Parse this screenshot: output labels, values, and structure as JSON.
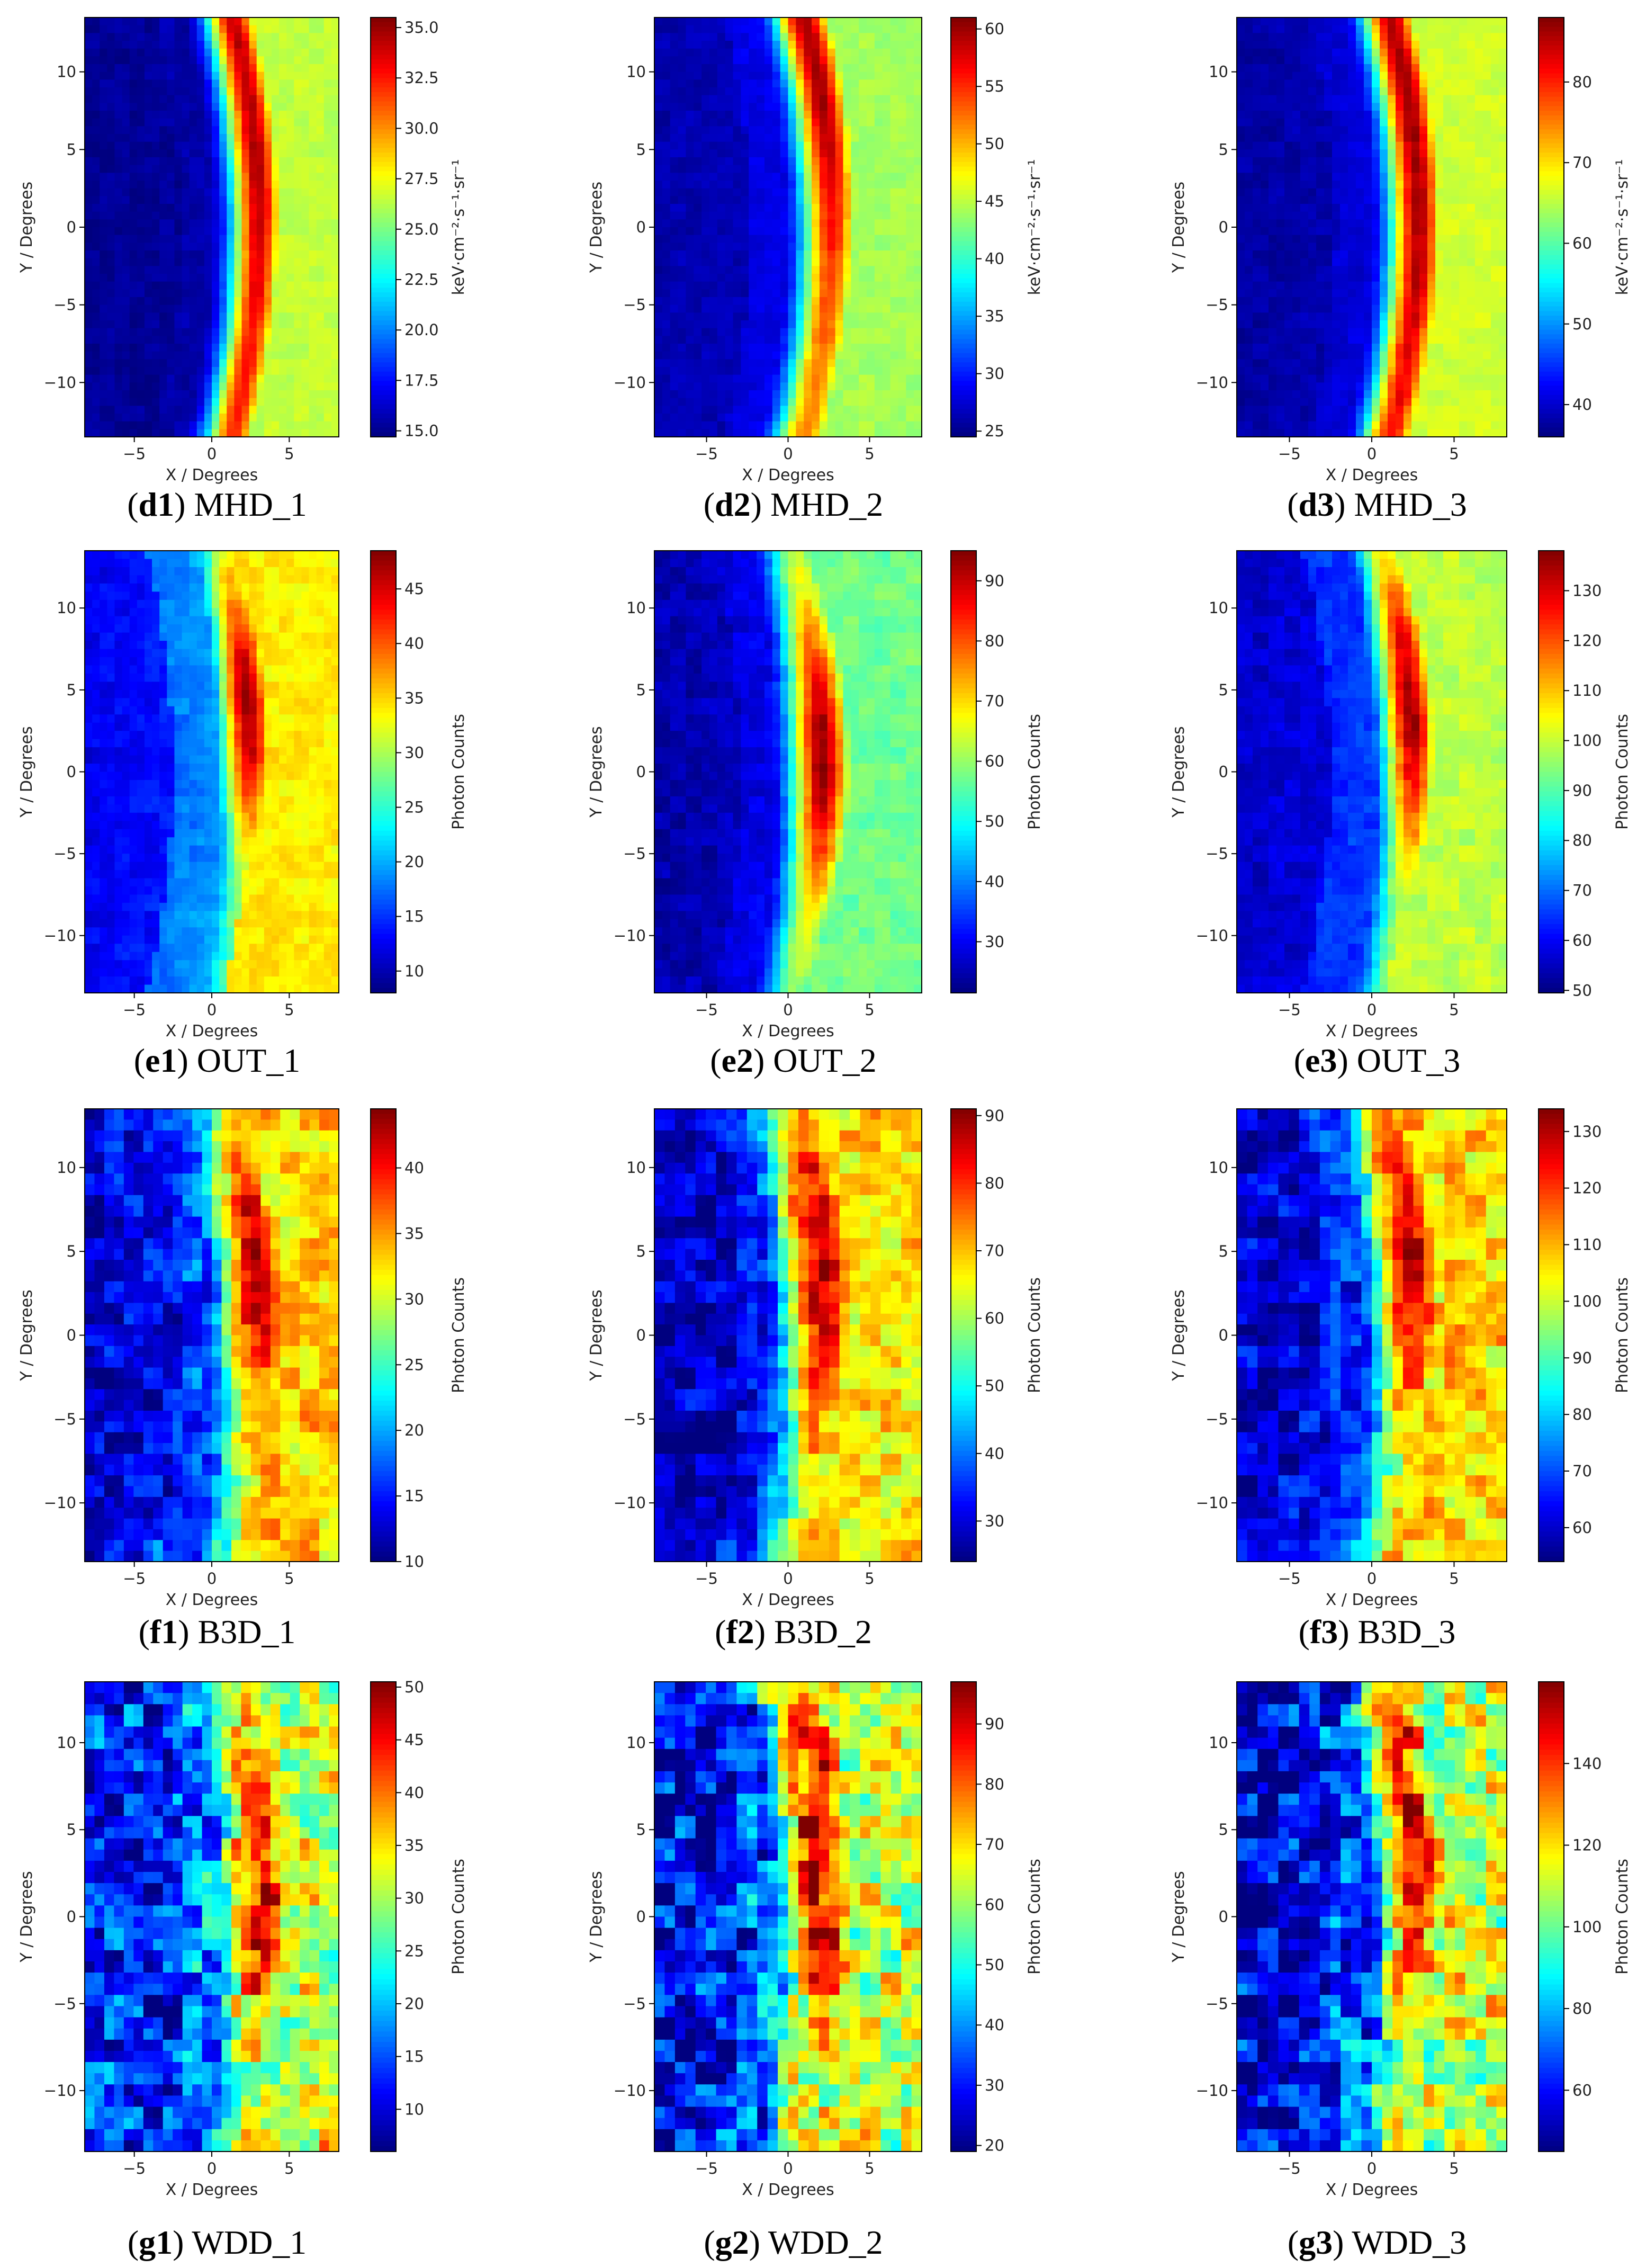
{
  "figure": {
    "colormap": [
      "#00007f",
      "#0000ff",
      "#007fff",
      "#00ffff",
      "#7fff7f",
      "#ffff00",
      "#ff7f00",
      "#ff0000",
      "#7f0000"
    ],
    "panels": [
      {
        "id": "d1",
        "name": "MHD_1",
        "colorbar_label": "keV·cm⁻²·s⁻¹·sr⁻¹",
        "chart_data": {
          "type": "heatmap",
          "xlabel": "X / Degrees",
          "ylabel": "Y / Degrees",
          "xlim": [
            -8.2,
            8.2
          ],
          "ylim": [
            -13.5,
            13.5
          ],
          "xticks": [
            -5,
            0,
            5
          ],
          "yticks": [
            -10,
            -5,
            0,
            5,
            10
          ],
          "clim": [
            14.7,
            35.5
          ],
          "cticks": [
            "15.0",
            "17.5",
            "20.0",
            "22.5",
            "25.0",
            "27.5",
            "30.0",
            "32.5",
            "35.0"
          ],
          "pattern": "crescent",
          "ridge_x": [
            1.5,
            4.6
          ],
          "ridge_width": 1.8,
          "ridge_y_center": 7,
          "ridge_y_spread": 18,
          "ridge_peak": 0.95,
          "ridge_min": 0.78,
          "bg_left": 0.05,
          "bg_right": 0.55,
          "noise": 0.02
        }
      },
      {
        "id": "d2",
        "name": "MHD_2",
        "colorbar_label": "keV·cm⁻²·s⁻¹·sr⁻¹",
        "chart_data": {
          "type": "heatmap",
          "xlabel": "X / Degrees",
          "ylabel": "Y / Degrees",
          "xlim": [
            -8.2,
            8.2
          ],
          "ylim": [
            -13.5,
            13.5
          ],
          "xticks": [
            -5,
            0,
            5
          ],
          "yticks": [
            -10,
            -5,
            0,
            5,
            10
          ],
          "clim": [
            24.5,
            61
          ],
          "cticks": [
            "25",
            "30",
            "35",
            "40",
            "45",
            "50",
            "55",
            "60"
          ],
          "pattern": "crescent",
          "ridge_x": [
            1.0,
            4.4
          ],
          "ridge_width": 1.9,
          "ridge_y_center": 12,
          "ridge_y_spread": 16,
          "ridge_peak": 0.97,
          "ridge_min": 0.72,
          "bg_left": 0.12,
          "bg_right": 0.5,
          "noise": 0.02
        }
      },
      {
        "id": "d3",
        "name": "MHD_3",
        "colorbar_label": "keV·cm⁻²·s⁻¹·sr⁻¹",
        "chart_data": {
          "type": "heatmap",
          "xlabel": "X / Degrees",
          "ylabel": "Y / Degrees",
          "xlim": [
            -8.2,
            8.2
          ],
          "ylim": [
            -13.5,
            13.5
          ],
          "xticks": [
            -5,
            0,
            5
          ],
          "yticks": [
            -10,
            -5,
            0,
            5,
            10
          ],
          "clim": [
            36,
            88
          ],
          "cticks": [
            "40",
            "50",
            "60",
            "70",
            "80"
          ],
          "pattern": "crescent",
          "ridge_x": [
            1.2,
            4.5
          ],
          "ridge_width": 1.8,
          "ridge_y_center": 6,
          "ridge_y_spread": 20,
          "ridge_peak": 0.97,
          "ridge_min": 0.8,
          "bg_left": 0.1,
          "bg_right": 0.55,
          "noise": 0.02
        }
      },
      {
        "id": "e1",
        "name": "OUT_1",
        "colorbar_label": "Photon Counts",
        "chart_data": {
          "type": "heatmap",
          "xlabel": "X / Degrees",
          "ylabel": "Y / Degrees",
          "xlim": [
            -8.2,
            8.2
          ],
          "ylim": [
            -13.5,
            13.5
          ],
          "xticks": [
            -5,
            0,
            5
          ],
          "yticks": [
            -10,
            -5,
            0,
            5,
            10
          ],
          "clim": [
            8,
            48.5
          ],
          "cticks": [
            "10",
            "15",
            "20",
            "25",
            "30",
            "35",
            "40",
            "45"
          ],
          "pattern": "crescent",
          "ridge_x": [
            1.0,
            4.0
          ],
          "ridge_width": 1.9,
          "ridge_y_center": 4,
          "ridge_y_spread": 9,
          "ridge_peak": 0.97,
          "ridge_min": 0.42,
          "bg_left": 0.3,
          "bg_right": 0.55,
          "noise": 0.03
        }
      },
      {
        "id": "e2",
        "name": "OUT_2",
        "colorbar_label": "Photon Counts",
        "chart_data": {
          "type": "heatmap",
          "xlabel": "X / Degrees",
          "ylabel": "Y / Degrees",
          "xlim": [
            -8.2,
            8.2
          ],
          "ylim": [
            -13.5,
            13.5
          ],
          "xticks": [
            -5,
            0,
            5
          ],
          "yticks": [
            -10,
            -5,
            0,
            5,
            10
          ],
          "clim": [
            21.5,
            95
          ],
          "cticks": [
            "30",
            "40",
            "50",
            "60",
            "70",
            "80",
            "90"
          ],
          "pattern": "crescent",
          "ridge_x": [
            0.8,
            3.5
          ],
          "ridge_width": 2.0,
          "ridge_y_center": 1,
          "ridge_y_spread": 9,
          "ridge_peak": 0.97,
          "ridge_min": 0.5,
          "bg_left": 0.12,
          "bg_right": 0.45,
          "noise": 0.03
        }
      },
      {
        "id": "e3",
        "name": "OUT_3",
        "colorbar_label": "Photon Counts",
        "chart_data": {
          "type": "heatmap",
          "xlabel": "X / Degrees",
          "ylabel": "Y / Degrees",
          "xlim": [
            -8.2,
            8.2
          ],
          "ylim": [
            -13.5,
            13.5
          ],
          "xticks": [
            -5,
            0,
            5
          ],
          "yticks": [
            -10,
            -5,
            0,
            5,
            10
          ],
          "clim": [
            49.5,
            138
          ],
          "cticks": [
            "50",
            "60",
            "70",
            "80",
            "90",
            "100",
            "110",
            "120",
            "130"
          ],
          "pattern": "crescent",
          "ridge_x": [
            1.2,
            3.8
          ],
          "ridge_width": 1.8,
          "ridge_y_center": 4,
          "ridge_y_spread": 10,
          "ridge_peak": 0.97,
          "ridge_min": 0.45,
          "bg_left": 0.2,
          "bg_right": 0.5,
          "noise": 0.03
        }
      },
      {
        "id": "f1",
        "name": "B3D_1",
        "colorbar_label": "Photon Counts",
        "chart_data": {
          "type": "heatmap",
          "xlabel": "X / Degrees",
          "ylabel": "Y / Degrees",
          "xlim": [
            -8.2,
            8.2
          ],
          "ylim": [
            -13.5,
            13.5
          ],
          "xticks": [
            -5,
            0,
            5
          ],
          "yticks": [
            -10,
            -5,
            0,
            5,
            10
          ],
          "clim": [
            10,
            44.5
          ],
          "cticks": [
            "10",
            "15",
            "20",
            "25",
            "30",
            "35",
            "40"
          ],
          "pattern": "blocky",
          "ridge_x": [
            1.5,
            4.5
          ],
          "ridge_width": 2.5,
          "ridge_y_center": 4,
          "ridge_y_spread": 10,
          "ridge_peak": 0.95,
          "ridge_min": 0.45,
          "bg_left": 0.22,
          "bg_right": 0.6,
          "noise": 0.09
        }
      },
      {
        "id": "f2",
        "name": "B3D_2",
        "colorbar_label": "Photon Counts",
        "chart_data": {
          "type": "heatmap",
          "xlabel": "X / Degrees",
          "ylabel": "Y / Degrees",
          "xlim": [
            -8.2,
            8.2
          ],
          "ylim": [
            -13.5,
            13.5
          ],
          "xticks": [
            -5,
            0,
            5
          ],
          "yticks": [
            -10,
            -5,
            0,
            5,
            10
          ],
          "clim": [
            24,
            91
          ],
          "cticks": [
            "30",
            "40",
            "50",
            "60",
            "70",
            "80",
            "90"
          ],
          "pattern": "blocky",
          "ridge_x": [
            1.0,
            3.5
          ],
          "ridge_width": 2.6,
          "ridge_y_center": 4,
          "ridge_y_spread": 12,
          "ridge_peak": 0.95,
          "ridge_min": 0.5,
          "bg_left": 0.15,
          "bg_right": 0.6,
          "noise": 0.09
        }
      },
      {
        "id": "f3",
        "name": "B3D_3",
        "colorbar_label": "Photon Counts",
        "chart_data": {
          "type": "heatmap",
          "xlabel": "X / Degrees",
          "ylabel": "Y / Degrees",
          "xlim": [
            -8.2,
            8.2
          ],
          "ylim": [
            -13.5,
            13.5
          ],
          "xticks": [
            -5,
            0,
            5
          ],
          "yticks": [
            -10,
            -5,
            0,
            5,
            10
          ],
          "clim": [
            54,
            134
          ],
          "cticks": [
            "60",
            "70",
            "80",
            "90",
            "100",
            "110",
            "120",
            "130"
          ],
          "pattern": "blocky",
          "ridge_x": [
            1.3,
            3.8
          ],
          "ridge_width": 2.4,
          "ridge_y_center": 5,
          "ridge_y_spread": 11,
          "ridge_peak": 0.96,
          "ridge_min": 0.48,
          "bg_left": 0.2,
          "bg_right": 0.6,
          "noise": 0.09
        }
      },
      {
        "id": "g1",
        "name": "WDD_1",
        "colorbar_label": "Photon Counts",
        "chart_data": {
          "type": "heatmap",
          "xlabel": "X / Degrees",
          "ylabel": "Y / Degrees",
          "xlim": [
            -8.2,
            8.2
          ],
          "ylim": [
            -13.5,
            13.5
          ],
          "xticks": [
            -5,
            0,
            5
          ],
          "yticks": [
            -10,
            -5,
            0,
            5,
            10
          ],
          "clim": [
            6,
            50.5
          ],
          "cticks": [
            "10",
            "15",
            "20",
            "25",
            "30",
            "35",
            "40",
            "45",
            "50"
          ],
          "pattern": "noisy",
          "ridge_x": [
            1.8,
            4.6
          ],
          "ridge_width": 2.4,
          "ridge_y_center": 3,
          "ridge_y_spread": 11,
          "ridge_peak": 0.92,
          "ridge_min": 0.45,
          "bg_left": 0.3,
          "bg_right": 0.5,
          "noise": 0.16
        }
      },
      {
        "id": "g2",
        "name": "WDD_2",
        "colorbar_label": "Photon Counts",
        "chart_data": {
          "type": "heatmap",
          "xlabel": "X / Degrees",
          "ylabel": "Y / Degrees",
          "xlim": [
            -8.2,
            8.2
          ],
          "ylim": [
            -13.5,
            13.5
          ],
          "xticks": [
            -5,
            0,
            5
          ],
          "yticks": [
            -10,
            -5,
            0,
            5,
            10
          ],
          "clim": [
            19,
            97
          ],
          "cticks": [
            "20",
            "30",
            "40",
            "50",
            "60",
            "70",
            "80",
            "90"
          ],
          "pattern": "noisy",
          "ridge_x": [
            1.0,
            3.5
          ],
          "ridge_width": 2.6,
          "ridge_y_center": 4,
          "ridge_y_spread": 13,
          "ridge_peak": 0.93,
          "ridge_min": 0.5,
          "bg_left": 0.22,
          "bg_right": 0.5,
          "noise": 0.16
        }
      },
      {
        "id": "g3",
        "name": "WDD_3",
        "colorbar_label": "Photon Counts",
        "chart_data": {
          "type": "heatmap",
          "xlabel": "X / Degrees",
          "ylabel": "Y / Degrees",
          "xlim": [
            -8.2,
            8.2
          ],
          "ylim": [
            -13.5,
            13.5
          ],
          "xticks": [
            -5,
            0,
            5
          ],
          "yticks": [
            -10,
            -5,
            0,
            5,
            10
          ],
          "clim": [
            45,
            160
          ],
          "cticks": [
            "60",
            "80",
            "100",
            "120",
            "140"
          ],
          "pattern": "noisy",
          "ridge_x": [
            1.5,
            4.0
          ],
          "ridge_width": 2.4,
          "ridge_y_center": 5,
          "ridge_y_spread": 12,
          "ridge_peak": 0.9,
          "ridge_min": 0.45,
          "bg_left": 0.22,
          "bg_right": 0.5,
          "noise": 0.15
        }
      }
    ]
  }
}
